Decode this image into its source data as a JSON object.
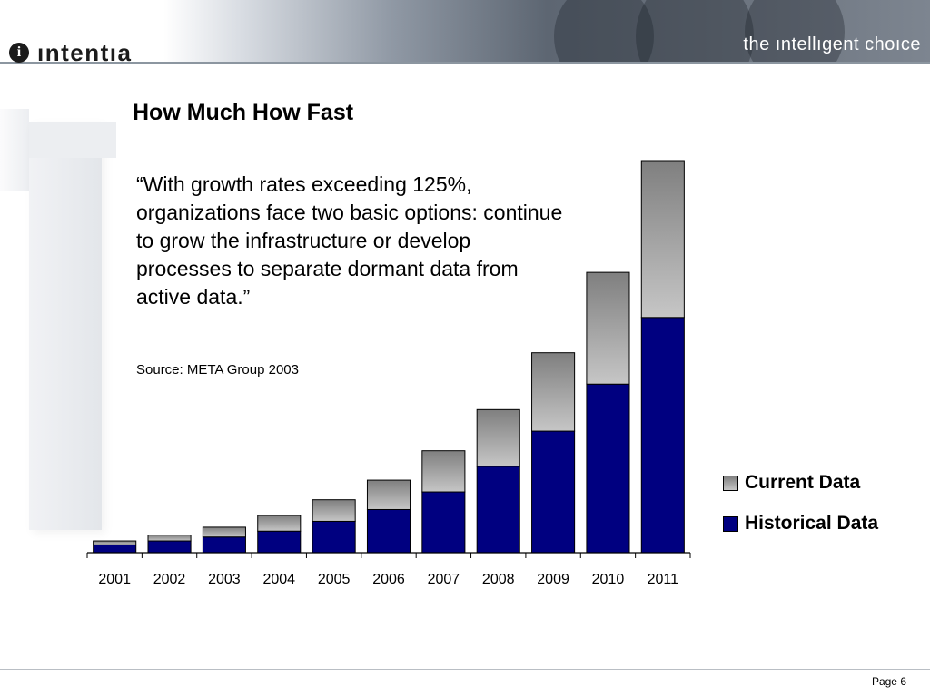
{
  "header": {
    "logo_mark": "i",
    "logo_text": "ıntentıa",
    "tagline": "the ıntellıgent choıce"
  },
  "slide": {
    "title": "How Much How Fast",
    "quote": "“With growth rates exceeding 125%, organizations face two basic options: continue to grow the infrastructure or develop processes to separate dormant data from active data.”",
    "source": "Source: META Group 2003",
    "page": "Page 6"
  },
  "colors": {
    "historical": "#000080",
    "current_top": "#7f7f7f",
    "current_bottom": "#c6c6c6"
  },
  "chart_data": {
    "type": "bar",
    "stacked": true,
    "title": "",
    "xlabel": "",
    "ylabel": "",
    "categories": [
      "2001",
      "2002",
      "2003",
      "2004",
      "2005",
      "2006",
      "2007",
      "2008",
      "2009",
      "2010",
      "2011"
    ],
    "series": [
      {
        "name": "Historical Data",
        "values": [
          2,
          3,
          4,
          5.5,
          8,
          11,
          15.5,
          22,
          31,
          43,
          60
        ]
      },
      {
        "name": "Current Data",
        "values": [
          1,
          1.5,
          2.5,
          4,
          5.5,
          7.5,
          10.5,
          14.5,
          20,
          28.5,
          40
        ]
      }
    ],
    "legend": [
      "Current Data",
      "Historical Data"
    ],
    "ylim": [
      0,
      100
    ],
    "grid": false,
    "legend_position": "right"
  }
}
